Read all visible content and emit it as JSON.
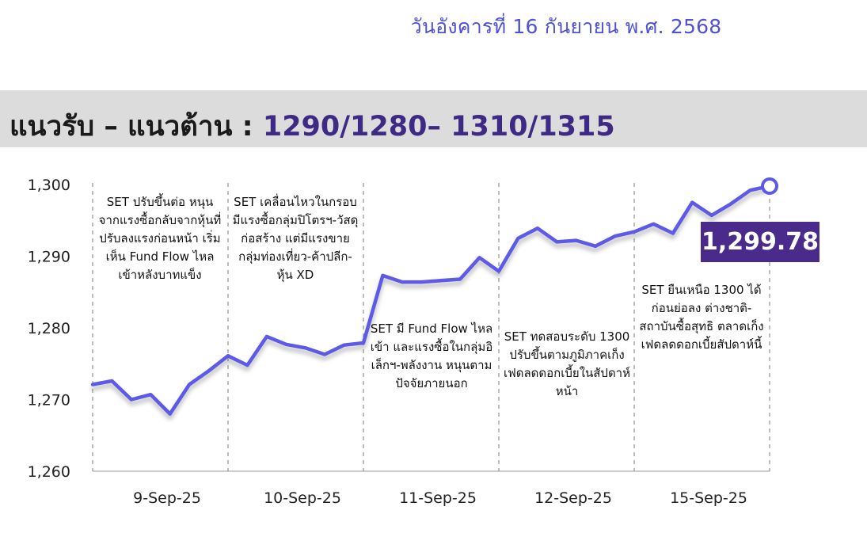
{
  "header": {
    "date": "วันอังคารที่ 16 กันยายน พ.ศ. 2568"
  },
  "band": {
    "label": "แนวรับ – แนวต้าน :",
    "levels": "1290/1280– 1310/1315"
  },
  "chart_data": {
    "type": "line",
    "title": "",
    "xlabel": "",
    "ylabel": "",
    "ylim": [
      1260,
      1300
    ],
    "yticks": [
      1260,
      1270,
      1280,
      1290,
      1300
    ],
    "ytick_labels": [
      "1,260",
      "1,270",
      "1,280",
      "1,290",
      "1,300"
    ],
    "grid": false,
    "line_color": "#5b5ae6",
    "days": [
      "9-Sep-25",
      "10-Sep-25",
      "11-Sep-25",
      "12-Sep-25",
      "15-Sep-25"
    ],
    "values": [
      1272.1,
      1272.6,
      1270.0,
      1270.7,
      1268.0,
      1272.1,
      1274.0,
      1276.1,
      1274.8,
      1278.8,
      1277.7,
      1277.2,
      1276.3,
      1277.6,
      1277.9,
      1287.3,
      1286.4,
      1286.4,
      1286.6,
      1286.8,
      1289.8,
      1287.9,
      1292.5,
      1293.9,
      1292.0,
      1292.2,
      1291.4,
      1292.8,
      1293.4,
      1294.5,
      1293.2,
      1297.5,
      1295.7,
      1297.3,
      1299.2,
      1299.78
    ],
    "last_value_label": "1,299.78",
    "annotations": [
      "SET ปรับขึ้นต่อ หนุนจากแรงซื้อกลับจากหุ้นที่ปรับลงแรงก่อนหน้า เริ่มเห็น Fund Flow ไหลเข้าหลังบาทแข็ง",
      "SET เคลื่อนไหวในกรอบ มีแรงซื้อกลุ่มปิโตรฯ-วัสดุก่อสร้าง แต่มีแรงขายกลุ่มท่องเที่ยว-ค้าปลีก-หุ้น XD",
      "SET มี Fund Flow ไหลเข้า และแรงซื้อในกลุ่มอิเล็กฯ-พลังงาน หนุนตามปัจจัยภายนอก",
      "SET ทดสอบระดับ 1300 ปรับขึ้นตามภูมิภาคเก็งเฟดลดดอกเบี้ยในสัปดาห์หน้า",
      "SET ยืนเหนือ 1300 ได้ก่อนย่อลง ต่างชาติ-สถาบันซื้อสุทธิ ตลาดเก็งเฟดลดดอกเบี้ยสัปดาห์นี้"
    ]
  }
}
